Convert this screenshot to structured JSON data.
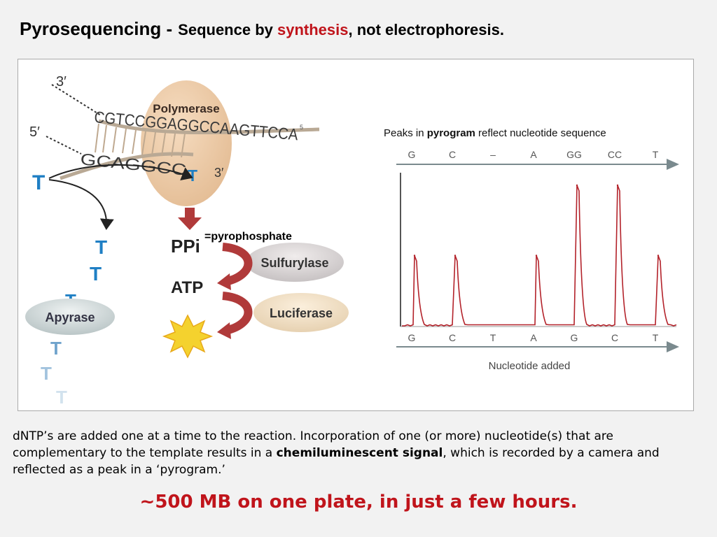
{
  "slide": {
    "title_main": "Pyrosequencing -",
    "title_sub_prefix": "Sequence by ",
    "title_sub_highlight": "synthesis",
    "title_sub_suffix": ", not electrophoresis.",
    "body_prefix": "dNTP’s are added one at a time to the reaction. Incorporation of one (or more) nucleotide(s) that are complementary to the template results in a ",
    "body_bold": "chemiluminescent signal",
    "body_suffix": ", which is recorded by a camera and reflected as a peak in a ‘pyrogram.’",
    "tagline": "~500 MB on one plate, in just a few hours.",
    "colors": {
      "accent_red": "#c0141b",
      "nucleotide_blue": "#1f7fc4"
    }
  },
  "diagram": {
    "three_prime_top": "3′",
    "five_prime": "5′",
    "three_prime_bottom": "3′",
    "template_strand": "CGTCCGGAGGCCAAGTTCCA",
    "template_tail_mark": "5",
    "synth_strand_label": "GCAGGCC",
    "synth_strand_new_base": "T",
    "polymerase": "Polymerase",
    "ppi": "PPi",
    "ppi_note": "=pyrophosphate",
    "sulfurylase": "Sulfurylase",
    "atp": "ATP",
    "luciferase": "Luciferase",
    "apyrase": "Apyrase",
    "nucleotide": "T"
  },
  "pyrogram": {
    "caption_prefix": "Peaks in ",
    "caption_bold": "pyrogram",
    "caption_suffix": " reflect nucleotide sequence",
    "top_axis_labels": [
      "G",
      "C",
      "–",
      "A",
      "GG",
      "CC",
      "T"
    ],
    "bottom_axis_labels": [
      "G",
      "C",
      "T",
      "A",
      "G",
      "C",
      "T"
    ],
    "xlabel": "Nucleotide added"
  },
  "chart_data": {
    "type": "line",
    "title": "",
    "categories": [
      "G",
      "C",
      "T",
      "A",
      "G",
      "C",
      "T"
    ],
    "sequence_read": [
      "G",
      "C",
      "–",
      "A",
      "GG",
      "CC",
      "T"
    ],
    "series": [
      {
        "values": [
          1,
          1,
          0,
          1,
          2,
          2,
          1
        ]
      }
    ],
    "xlabel": "Nucleotide added",
    "ylabel": "",
    "ylim": [
      0,
      2
    ],
    "grid": false
  }
}
